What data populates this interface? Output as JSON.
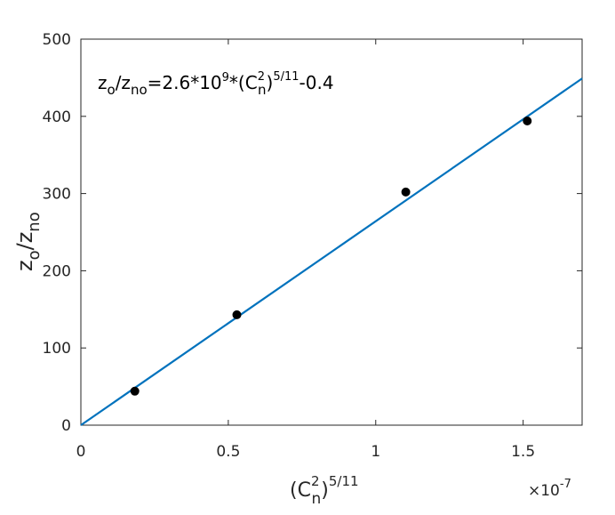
{
  "chart_data": {
    "type": "scatter",
    "annotation": [
      "z",
      "o",
      "/z",
      "no",
      "=2.6*10",
      "9",
      "*(C",
      "2",
      "n",
      ")",
      "5/11",
      "-0.4"
    ],
    "x_label": [
      "(C",
      "2",
      "n",
      ")",
      "5/11"
    ],
    "y_label": [
      "z",
      "o",
      "/z",
      "no"
    ],
    "x_exponent": [
      "×10",
      "-7"
    ],
    "xlim": [
      0,
      1.7
    ],
    "ylim": [
      0,
      500
    ],
    "xticks": [
      0,
      0.5,
      1,
      1.5
    ],
    "yticks": [
      0,
      100,
      200,
      300,
      400,
      500
    ],
    "series": [
      {
        "type": "scatter",
        "color": "#000000",
        "x": [
          0.183,
          0.529,
          1.102,
          1.514
        ],
        "values": [
          44,
          143,
          302,
          394
        ]
      },
      {
        "type": "line",
        "color": "#0072bd",
        "x": [
          0,
          1.7
        ],
        "values": [
          0,
          449
        ]
      }
    ]
  }
}
